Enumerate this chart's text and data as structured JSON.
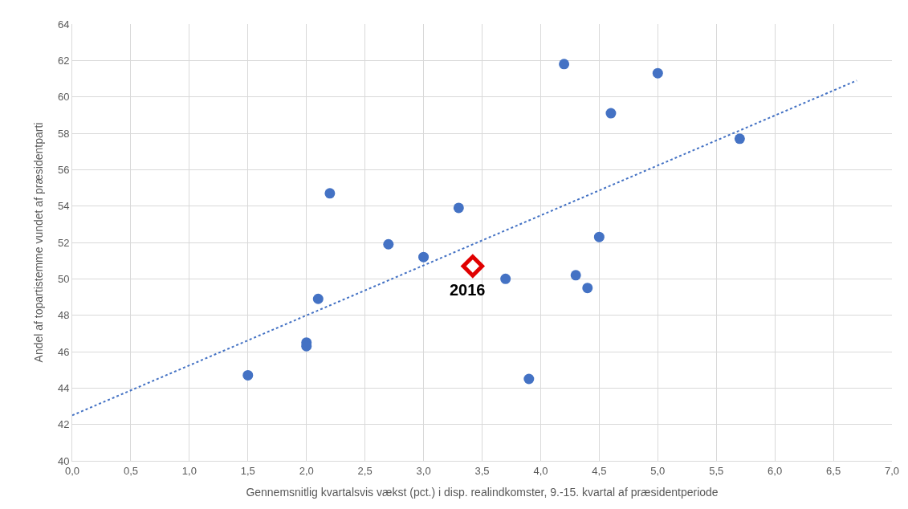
{
  "chart_data": {
    "type": "scatter",
    "xlabel": "Gennemsnitlig kvartalsvis vækst (pct.) i disp. realindkomster, 9.-15. kvartal af præsidentperiode",
    "ylabel": "Andel af topartistemme vundet af præsidentparti",
    "xlim": [
      0,
      7
    ],
    "xticks": [
      {
        "value": 0,
        "label": "0,0"
      },
      {
        "value": 0.5,
        "label": "0,5"
      },
      {
        "value": 1,
        "label": "1,0"
      },
      {
        "value": 1.5,
        "label": "1,5"
      },
      {
        "value": 2,
        "label": "2,0"
      },
      {
        "value": 2.5,
        "label": "2,5"
      },
      {
        "value": 3,
        "label": "3,0"
      },
      {
        "value": 3.5,
        "label": "3,5"
      },
      {
        "value": 4,
        "label": "4,0"
      },
      {
        "value": 4.5,
        "label": "4,5"
      },
      {
        "value": 5,
        "label": "5,0"
      },
      {
        "value": 5.5,
        "label": "5,5"
      },
      {
        "value": 6,
        "label": "6,0"
      },
      {
        "value": 6.5,
        "label": "6,5"
      },
      {
        "value": 7,
        "label": "7,0"
      }
    ],
    "ylim": [
      40,
      64
    ],
    "yticks": [
      40,
      42,
      44,
      46,
      48,
      50,
      52,
      54,
      56,
      58,
      60,
      62,
      64
    ],
    "grid": true,
    "legend": false,
    "series": [
      {
        "marker": "circle",
        "color": "#4472c4",
        "x": [
          1.5,
          2.0,
          2.0,
          2.1,
          2.2,
          2.7,
          3.0,
          3.3,
          3.7,
          3.9,
          4.2,
          4.3,
          4.4,
          4.5,
          4.6,
          5.0,
          5.7
        ],
        "values": [
          44.7,
          46.5,
          46.3,
          48.9,
          54.7,
          51.9,
          51.2,
          53.9,
          50.0,
          44.5,
          61.8,
          50.2,
          49.5,
          52.3,
          59.1,
          61.3,
          57.7
        ]
      },
      {
        "type": "scatter",
        "marker": "diamond",
        "color": "#e00000",
        "x": [
          3.42
        ],
        "values": [
          50.7
        ]
      },
      {
        "type": "line",
        "line_style": "dotted",
        "color": "#4472c4",
        "x": [
          0,
          6.7
        ],
        "values": [
          42.5,
          60.9
        ]
      }
    ],
    "annotations": [
      {
        "text": "2016",
        "x": 3.42,
        "y": 50.7
      }
    ]
  }
}
